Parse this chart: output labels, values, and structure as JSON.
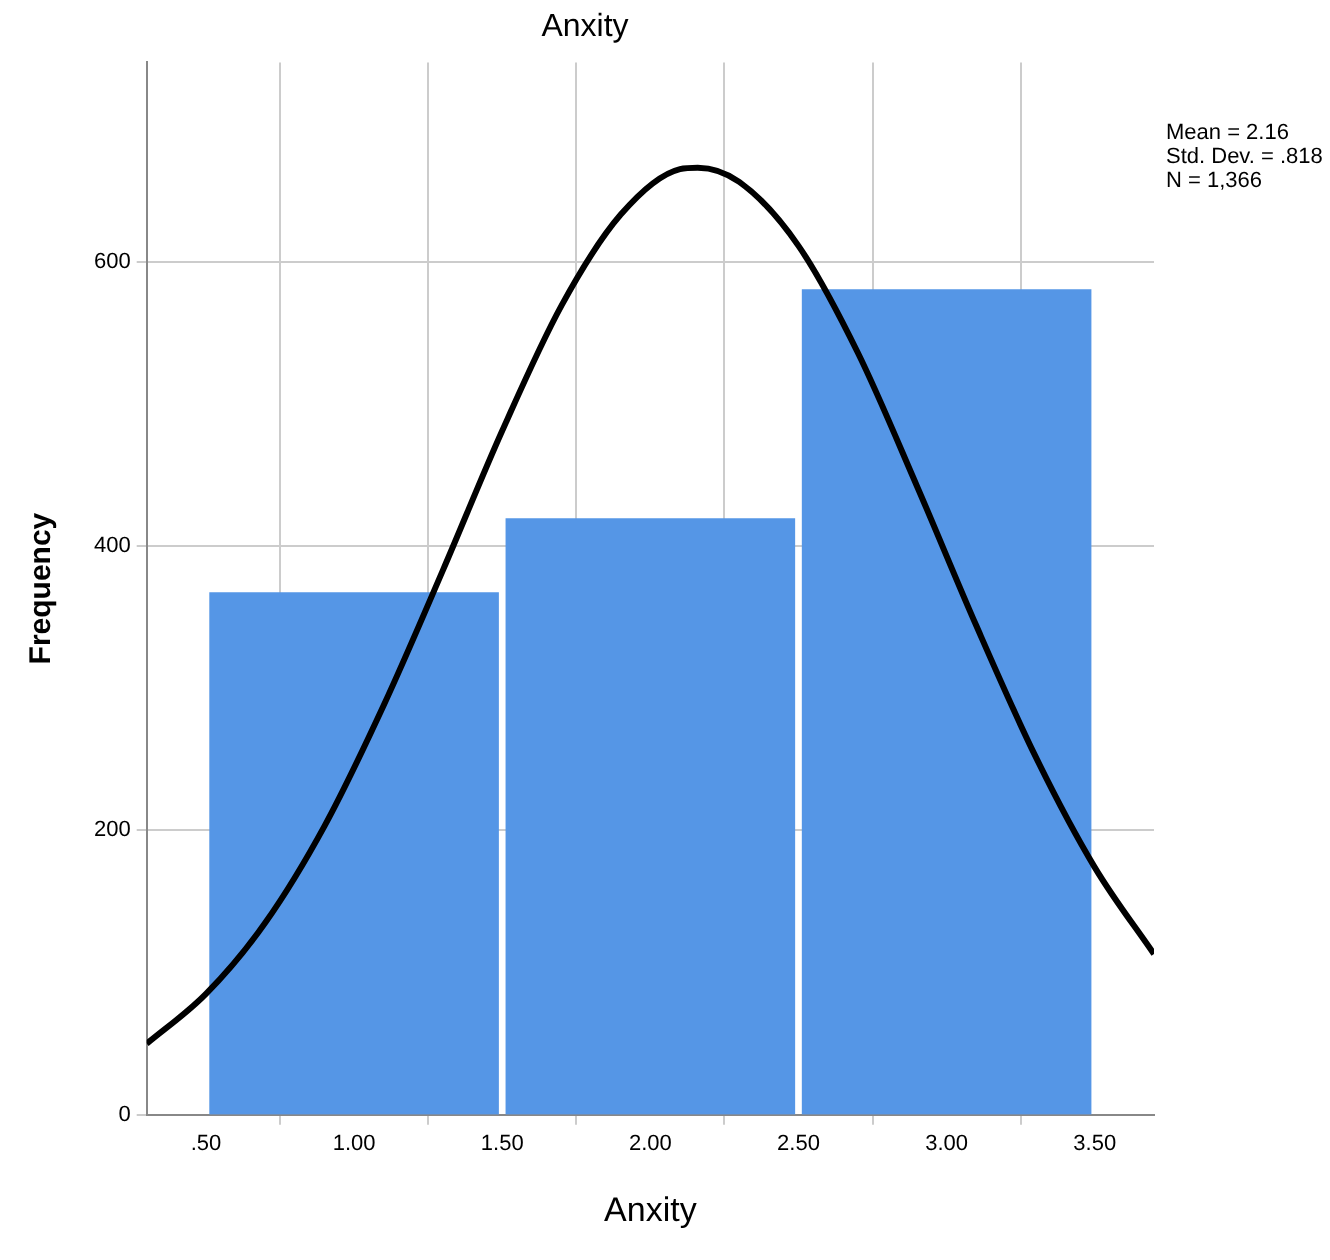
{
  "chart_data": {
    "type": "histogram",
    "title": "Anxity",
    "xlabel": "Anxity",
    "ylabel": "Frequency",
    "bins": [
      0.5,
      1.5,
      2.5,
      3.5
    ],
    "values": [
      367,
      419,
      580
    ],
    "color": "#5596e6",
    "series": [
      {
        "type": "line",
        "color": "#000000",
        "x": [
          0.3,
          0.5,
          0.7,
          0.9,
          1.1,
          1.3,
          1.5,
          1.7,
          1.9,
          2.1,
          2.16,
          2.3,
          2.5,
          2.7,
          2.9,
          3.1,
          3.3,
          3.5,
          3.7
        ],
        "values": [
          50,
          85,
          135,
          203,
          288,
          383,
          481,
          569,
          633,
          665,
          666,
          656,
          611,
          536,
          442,
          344,
          252,
          174,
          113
        ]
      }
    ],
    "xlim": [
      0.3,
      3.7
    ],
    "xticks": [
      {
        "value": 0.5,
        "label": ".50"
      },
      {
        "value": 1,
        "label": "1.00"
      },
      {
        "value": 1.5,
        "label": "1.50"
      },
      {
        "value": 2,
        "label": "2.00"
      },
      {
        "value": 2.5,
        "label": "2.50"
      },
      {
        "value": 3,
        "label": "3.00"
      },
      {
        "value": 3.5,
        "label": "3.50"
      }
    ],
    "ylim": [
      0,
      740
    ],
    "yticks": [
      0,
      200,
      400,
      600
    ],
    "grid": true,
    "marker": "none",
    "line_style": "solid",
    "annotations": [
      "Mean = 2.16",
      "Std. Dev. = .818",
      "N = 1,366"
    ]
  }
}
